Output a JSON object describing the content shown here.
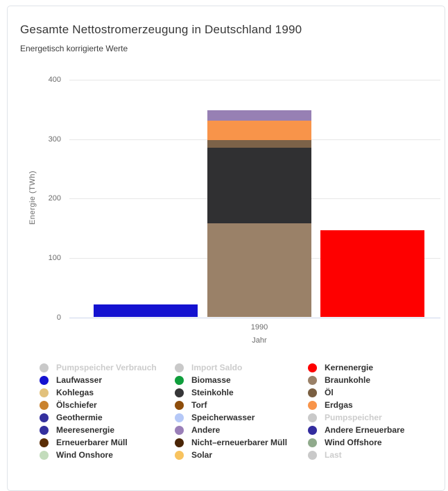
{
  "chart_data": {
    "type": "bar",
    "stacked": true,
    "title": "Gesamte Nettostromerzeugung in Deutschland 1990",
    "subtitle": "Energetisch korrigierte Werte",
    "categories": [
      "1990"
    ],
    "xlabel": "Jahr",
    "ylabel": "Energie (TWh)",
    "ylim": [
      0,
      400
    ],
    "yticks": [
      0,
      100,
      200,
      300,
      400
    ],
    "unit": "TWh",
    "grid": true,
    "legend_position": "bottom",
    "stacks": [
      {
        "name": "wasserkraft",
        "segments": [
          {
            "label": "Laufwasser",
            "value": 20,
            "color": "#1412d0"
          }
        ]
      },
      {
        "name": "konventionell",
        "segments": [
          {
            "label": "Braunkohle",
            "value": 157,
            "color": "#9a8168"
          },
          {
            "label": "Steinkohle",
            "value": 127,
            "color": "#303032"
          },
          {
            "label": "Öl",
            "value": 13,
            "color": "#7c6248"
          },
          {
            "label": "Erdgas",
            "value": 33,
            "color": "#f8944a"
          },
          {
            "label": "Andere",
            "value": 17,
            "color": "#9780b4"
          }
        ]
      },
      {
        "name": "kernenergie",
        "segments": [
          {
            "label": "Kernenergie",
            "value": 145,
            "color": "#fe0000"
          }
        ]
      }
    ]
  },
  "legend": {
    "disabled_color": "#c9c9c9",
    "columns": [
      [
        {
          "label": "Pumpspeicher Verbrauch",
          "color": "#c9c9c9",
          "disabled": true
        },
        {
          "label": "Laufwasser",
          "color": "#1412d0",
          "disabled": false
        },
        {
          "label": "Kohlegas",
          "color": "#e2c17c",
          "disabled": false
        },
        {
          "label": "Ölschiefer",
          "color": "#c9822e",
          "disabled": false
        },
        {
          "label": "Geothermie",
          "color": "#34309e",
          "disabled": false
        },
        {
          "label": "Meeresenergie",
          "color": "#34309e",
          "disabled": false
        },
        {
          "label": "Erneuerbarer Müll",
          "color": "#5a2d05",
          "disabled": false
        },
        {
          "label": "Wind Onshore",
          "color": "#c3dcbc",
          "disabled": false
        }
      ],
      [
        {
          "label": "Import Saldo",
          "color": "#c9c9c9",
          "disabled": true
        },
        {
          "label": "Biomasse",
          "color": "#0f9e3c",
          "disabled": false
        },
        {
          "label": "Steinkohle",
          "color": "#363638",
          "disabled": false
        },
        {
          "label": "Torf",
          "color": "#8e4d0b",
          "disabled": false
        },
        {
          "label": "Speicherwasser",
          "color": "#b5c8f7",
          "disabled": false
        },
        {
          "label": "Andere",
          "color": "#9a7fb8",
          "disabled": false
        },
        {
          "label": "Nicht–erneuerbarer Müll",
          "color": "#4a2506",
          "disabled": false
        },
        {
          "label": "Solar",
          "color": "#f8c35f",
          "disabled": false
        }
      ],
      [
        {
          "label": "Kernenergie",
          "color": "#fe0000",
          "disabled": false
        },
        {
          "label": "Braunkohle",
          "color": "#9a8168",
          "disabled": false
        },
        {
          "label": "Öl",
          "color": "#7a5f42",
          "disabled": false
        },
        {
          "label": "Erdgas",
          "color": "#f8944a",
          "disabled": false
        },
        {
          "label": "Pumpspeicher",
          "color": "#c9c9c9",
          "disabled": true
        },
        {
          "label": "Andere Erneuerbare",
          "color": "#332c9e",
          "disabled": false
        },
        {
          "label": "Wind Offshore",
          "color": "#90aa8c",
          "disabled": false
        },
        {
          "label": "Last",
          "color": "#c9c9c9",
          "disabled": true
        }
      ]
    ]
  }
}
